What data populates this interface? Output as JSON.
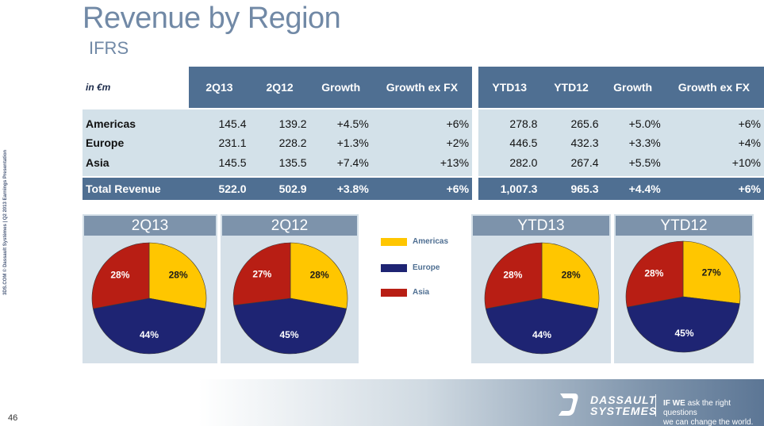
{
  "header": {
    "title": "Revenue by Region",
    "subtitle": "IFRS",
    "side_text": "3DS.COM © Dassault Systèmes | Q2 2013 Earnings Presentation"
  },
  "table": {
    "caption": "in €m",
    "columns": [
      "2Q13",
      "2Q12",
      "Growth",
      "Growth ex FX",
      "YTD13",
      "YTD12",
      "Growth",
      "Growth ex FX"
    ],
    "rows": [
      {
        "label": "Americas",
        "values": [
          "145.4",
          "139.2",
          "+4.5%",
          "+6%",
          "278.8",
          "265.6",
          "+5.0%",
          "+6%"
        ]
      },
      {
        "label": "Europe",
        "values": [
          "231.1",
          "228.2",
          "+1.3%",
          "+2%",
          "446.5",
          "432.3",
          "+3.3%",
          "+4%"
        ]
      },
      {
        "label": "Asia",
        "values": [
          "145.5",
          "135.5",
          "+7.4%",
          "+13%",
          "282.0",
          "267.4",
          "+5.5%",
          "+10%"
        ]
      }
    ],
    "total": {
      "label": "Total Revenue",
      "values": [
        "522.0",
        "502.9",
        "+3.8%",
        "+6%",
        "1,007.3",
        "965.3",
        "+4.4%",
        "+6%"
      ]
    }
  },
  "colors": {
    "Americas": "#ffc600",
    "Europe": "#1e2473",
    "Asia": "#b81e14"
  },
  "legend": [
    {
      "label": "Americas",
      "color": "#ffc600"
    },
    {
      "label": "Europe",
      "color": "#1e2473"
    },
    {
      "label": "Asia",
      "color": "#b81e14"
    }
  ],
  "chart_data": [
    {
      "type": "pie",
      "title": "2Q13",
      "labels": [
        "Americas",
        "Europe",
        "Asia"
      ],
      "values": [
        28,
        44,
        28
      ],
      "value_labels": [
        "28%",
        "44%",
        "28%"
      ]
    },
    {
      "type": "pie",
      "title": "2Q12",
      "labels": [
        "Americas",
        "Europe",
        "Asia"
      ],
      "values": [
        28,
        45,
        27
      ],
      "value_labels": [
        "28%",
        "45%",
        "27%"
      ]
    },
    {
      "type": "pie",
      "title": "YTD13",
      "labels": [
        "Americas",
        "Europe",
        "Asia"
      ],
      "values": [
        28,
        44,
        28
      ],
      "value_labels": [
        "28%",
        "44%",
        "28%"
      ]
    },
    {
      "type": "pie",
      "title": "YTD12",
      "labels": [
        "Americas",
        "Europe",
        "Asia"
      ],
      "values": [
        27,
        45,
        28
      ],
      "value_labels": [
        "27%",
        "45%",
        "28%"
      ]
    }
  ],
  "footer": {
    "page_number": "46",
    "brand_line1": "DASSAULT",
    "brand_line2": "SYSTEMES",
    "tagline_bold": "IF WE",
    "tagline_rest": "ask the right questions",
    "tagline_line2": "we can change the world."
  }
}
